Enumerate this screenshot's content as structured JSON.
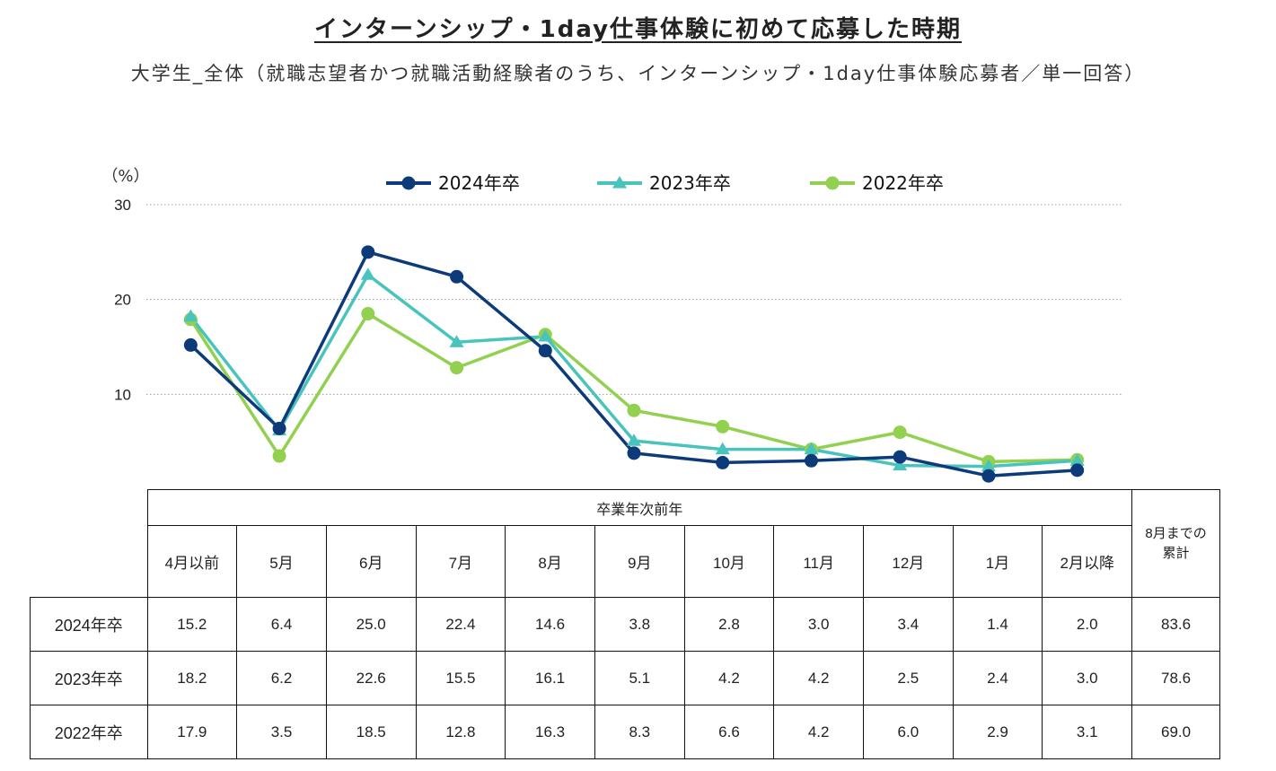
{
  "title": "インターンシップ・1day仕事体験に初めて応募した時期",
  "subtitle": "大学生_全体（就職志望者かつ就職活動経験者のうち、インターンシップ・1day仕事体験応募者／単一回答）",
  "colors": {
    "s2024": "#0d3b7a",
    "s2023": "#48c4bd",
    "s2022": "#92d050"
  },
  "chart_data": {
    "type": "line",
    "unit_label": "（%）",
    "ylim": [
      0,
      30
    ],
    "yticks": [
      10,
      20,
      30
    ],
    "grid": "dotted horizontal",
    "legend_position": "top-center",
    "categories": [
      "4月以前",
      "5月",
      "6月",
      "7月",
      "8月",
      "9月",
      "10月",
      "11月",
      "12月",
      "1月",
      "2月以降"
    ],
    "series": [
      {
        "name": "2024年卒",
        "marker": "circle",
        "values": [
          15.2,
          6.4,
          25.0,
          22.4,
          14.6,
          3.8,
          2.8,
          3.0,
          3.4,
          1.4,
          2.0
        ]
      },
      {
        "name": "2023年卒",
        "marker": "triangle",
        "values": [
          18.2,
          6.2,
          22.6,
          15.5,
          16.1,
          5.1,
          4.2,
          4.2,
          2.5,
          2.4,
          3.0
        ]
      },
      {
        "name": "2022年卒",
        "marker": "circle",
        "values": [
          17.9,
          3.5,
          18.5,
          12.8,
          16.3,
          8.3,
          6.6,
          4.2,
          6.0,
          2.9,
          3.1
        ]
      }
    ]
  },
  "table": {
    "group_header": "卒業年次前年",
    "cumulative_header_line1": "8月までの",
    "cumulative_header_line2": "累計",
    "rows": [
      {
        "label": "2024年卒",
        "values": [
          "15.2",
          "6.4",
          "25.0",
          "22.4",
          "14.6",
          "3.8",
          "2.8",
          "3.0",
          "3.4",
          "1.4",
          "2.0"
        ],
        "cumulative": "83.6"
      },
      {
        "label": "2023年卒",
        "values": [
          "18.2",
          "6.2",
          "22.6",
          "15.5",
          "16.1",
          "5.1",
          "4.2",
          "4.2",
          "2.5",
          "2.4",
          "3.0"
        ],
        "cumulative": "78.6"
      },
      {
        "label": "2022年卒",
        "values": [
          "17.9",
          "3.5",
          "18.5",
          "12.8",
          "16.3",
          "8.3",
          "6.6",
          "4.2",
          "6.0",
          "2.9",
          "3.1"
        ],
        "cumulative": "69.0"
      }
    ]
  }
}
